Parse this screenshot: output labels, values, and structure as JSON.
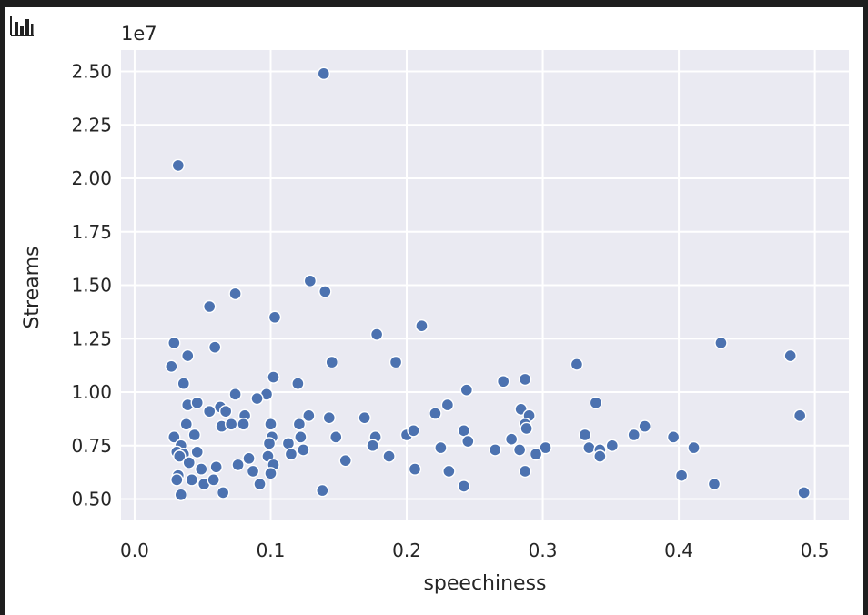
{
  "toolbar": {
    "chart_icon": "bar-chart-icon"
  },
  "chart_data": {
    "type": "scatter",
    "title": "",
    "xlabel": "speechiness",
    "ylabel": "Streams",
    "offset_text": "1e7",
    "xlim": [
      -0.01,
      0.525
    ],
    "ylim": [
      0.4,
      2.6
    ],
    "xticks": [
      0.0,
      0.1,
      0.2,
      0.3,
      0.4,
      0.5
    ],
    "xtick_labels": [
      "0.0",
      "0.1",
      "0.2",
      "0.3",
      "0.4",
      "0.5"
    ],
    "yticks": [
      0.5,
      0.75,
      1.0,
      1.25,
      1.5,
      1.75,
      2.0,
      2.25,
      2.5
    ],
    "ytick_labels": [
      "0.50",
      "0.75",
      "1.00",
      "1.25",
      "1.50",
      "1.75",
      "2.00",
      "2.25",
      "2.50"
    ],
    "grid": true,
    "colors": {
      "background": "#eaeaf2",
      "grid": "#ffffff",
      "marker": "#4c72b0",
      "marker_edge": "#ffffff"
    },
    "series": [
      {
        "points": [
          [
            0.139,
            2.49
          ],
          [
            0.032,
            2.06
          ],
          [
            0.129,
            1.52
          ],
          [
            0.14,
            1.47
          ],
          [
            0.074,
            1.46
          ],
          [
            0.055,
            1.4
          ],
          [
            0.103,
            1.35
          ],
          [
            0.211,
            1.31
          ],
          [
            0.029,
            1.23
          ],
          [
            0.059,
            1.21
          ],
          [
            0.178,
            1.27
          ],
          [
            0.431,
            1.23
          ],
          [
            0.039,
            1.17
          ],
          [
            0.482,
            1.17
          ],
          [
            0.027,
            1.12
          ],
          [
            0.145,
            1.14
          ],
          [
            0.192,
            1.14
          ],
          [
            0.325,
            1.13
          ],
          [
            0.102,
            1.07
          ],
          [
            0.036,
            1.04
          ],
          [
            0.12,
            1.04
          ],
          [
            0.271,
            1.05
          ],
          [
            0.287,
            1.06
          ],
          [
            0.244,
            1.01
          ],
          [
            0.074,
            0.99
          ],
          [
            0.097,
            0.99
          ],
          [
            0.09,
            0.97
          ],
          [
            0.039,
            0.94
          ],
          [
            0.046,
            0.95
          ],
          [
            0.063,
            0.93
          ],
          [
            0.067,
            0.91
          ],
          [
            0.055,
            0.91
          ],
          [
            0.23,
            0.94
          ],
          [
            0.339,
            0.95
          ],
          [
            0.284,
            0.92
          ],
          [
            0.081,
            0.89
          ],
          [
            0.128,
            0.89
          ],
          [
            0.143,
            0.88
          ],
          [
            0.169,
            0.88
          ],
          [
            0.221,
            0.9
          ],
          [
            0.29,
            0.89
          ],
          [
            0.489,
            0.89
          ],
          [
            0.038,
            0.85
          ],
          [
            0.064,
            0.84
          ],
          [
            0.071,
            0.85
          ],
          [
            0.08,
            0.85
          ],
          [
            0.1,
            0.85
          ],
          [
            0.121,
            0.85
          ],
          [
            0.287,
            0.85
          ],
          [
            0.375,
            0.84
          ],
          [
            0.029,
            0.79
          ],
          [
            0.044,
            0.8
          ],
          [
            0.101,
            0.79
          ],
          [
            0.122,
            0.79
          ],
          [
            0.148,
            0.79
          ],
          [
            0.177,
            0.79
          ],
          [
            0.2,
            0.8
          ],
          [
            0.205,
            0.82
          ],
          [
            0.242,
            0.82
          ],
          [
            0.277,
            0.78
          ],
          [
            0.288,
            0.83
          ],
          [
            0.331,
            0.8
          ],
          [
            0.367,
            0.8
          ],
          [
            0.396,
            0.79
          ],
          [
            0.034,
            0.75
          ],
          [
            0.113,
            0.76
          ],
          [
            0.099,
            0.76
          ],
          [
            0.175,
            0.75
          ],
          [
            0.225,
            0.74
          ],
          [
            0.245,
            0.77
          ],
          [
            0.265,
            0.73
          ],
          [
            0.283,
            0.73
          ],
          [
            0.302,
            0.74
          ],
          [
            0.334,
            0.74
          ],
          [
            0.342,
            0.73
          ],
          [
            0.351,
            0.75
          ],
          [
            0.411,
            0.74
          ],
          [
            0.031,
            0.72
          ],
          [
            0.036,
            0.71
          ],
          [
            0.046,
            0.72
          ],
          [
            0.115,
            0.71
          ],
          [
            0.124,
            0.73
          ],
          [
            0.033,
            0.7
          ],
          [
            0.098,
            0.7
          ],
          [
            0.187,
            0.7
          ],
          [
            0.295,
            0.71
          ],
          [
            0.342,
            0.7
          ],
          [
            0.04,
            0.67
          ],
          [
            0.076,
            0.66
          ],
          [
            0.084,
            0.69
          ],
          [
            0.102,
            0.66
          ],
          [
            0.155,
            0.68
          ],
          [
            0.032,
            0.61
          ],
          [
            0.049,
            0.64
          ],
          [
            0.06,
            0.65
          ],
          [
            0.087,
            0.63
          ],
          [
            0.1,
            0.62
          ],
          [
            0.206,
            0.64
          ],
          [
            0.231,
            0.63
          ],
          [
            0.287,
            0.63
          ],
          [
            0.402,
            0.61
          ],
          [
            0.031,
            0.59
          ],
          [
            0.042,
            0.59
          ],
          [
            0.051,
            0.57
          ],
          [
            0.058,
            0.59
          ],
          [
            0.092,
            0.57
          ],
          [
            0.242,
            0.56
          ],
          [
            0.426,
            0.57
          ],
          [
            0.034,
            0.52
          ],
          [
            0.065,
            0.53
          ],
          [
            0.138,
            0.54
          ],
          [
            0.492,
            0.53
          ]
        ]
      }
    ]
  }
}
